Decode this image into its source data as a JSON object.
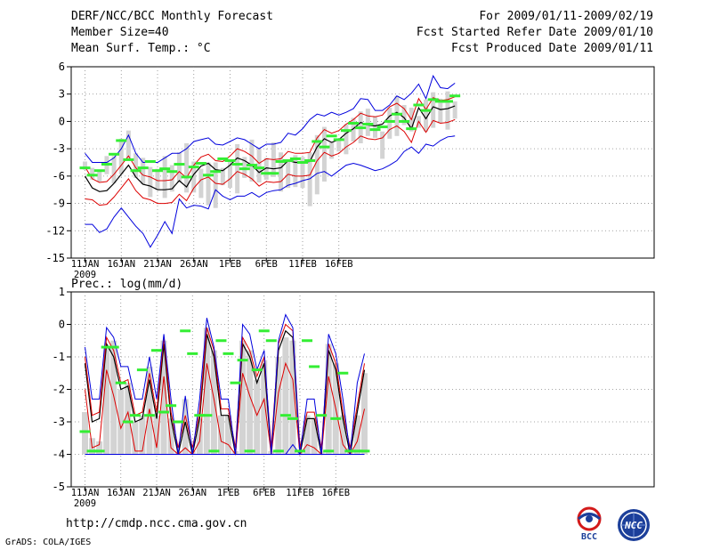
{
  "header": {
    "title": "DERF/NCC/BCC Monthly Forecast",
    "member": "Member Size=40",
    "variable": "Mean Surf. Temp.: °C",
    "period": "For 2009/01/11-2009/02/19",
    "started": "Fcst Started Refer Date 2009/01/10",
    "produced": "Fcst Produced Date 2009/01/11"
  },
  "footer": {
    "url": "http://cmdp.ncc.cma.gov.cn",
    "grads": "GrADS: COLA/IGES",
    "logo_bcc": "BCC",
    "logo_ncc": "NCC"
  },
  "colors": {
    "ensemble_mean": "#000000",
    "spread": "#dd0000",
    "extremes": "#0000dd",
    "member_box": "#d3d3d3",
    "climatology": "#33ee33",
    "grid": "#888888"
  },
  "chart_data": [
    {
      "type": "line",
      "title": "Mean Surf. Temp.: °C",
      "x_ticks": [
        "11JAN",
        "16JAN",
        "21JAN",
        "26JAN",
        "1FEB",
        "6FEB",
        "11FEB",
        "16FEB"
      ],
      "x_sub": "2009",
      "ylim": [
        -15,
        6
      ],
      "yticks": [
        "-15",
        "-12",
        "-9",
        "-6",
        "-3",
        "0",
        "3",
        "6"
      ],
      "series": [
        {
          "name": "ensemble mean",
          "values": [
            -6,
            -7.3,
            -7.7,
            -7.6,
            -6.8,
            -5.8,
            -4.8,
            -6.1,
            -6.9,
            -7.1,
            -7.5,
            -7.5,
            -7.4,
            -6.5,
            -7.2,
            -5.8,
            -4.9,
            -4.6,
            -5.3,
            -5.4,
            -4.8,
            -4,
            -4.3,
            -4.8,
            -5.6,
            -5.1,
            -5.2,
            -5.1,
            -4.3,
            -4.5,
            -4.5,
            -4.4,
            -2.8,
            -1.9,
            -2.3,
            -2,
            -1.3,
            -0.8,
            -0.1,
            -0.4,
            -0.5,
            -0.3,
            0.6,
            1,
            0.4,
            -0.8,
            1.5,
            0.3,
            1.6,
            1.3,
            1.4,
            1.7
          ]
        },
        {
          "name": "mean + std",
          "values": [
            -5,
            -6.3,
            -6.7,
            -6.6,
            -5.8,
            -4.8,
            -3.8,
            -5.1,
            -5.9,
            -6.1,
            -6.5,
            -6.5,
            -6.4,
            -5.5,
            -6.2,
            -4.8,
            -3.9,
            -3.6,
            -4.3,
            -4.4,
            -3.8,
            -3,
            -3.3,
            -3.8,
            -4.6,
            -4.1,
            -4.2,
            -4.1,
            -3.3,
            -3.5,
            -3.5,
            -3.4,
            -1.8,
            -0.9,
            -1.3,
            -1,
            -0.3,
            0.2,
            0.9,
            0.6,
            0.5,
            0.7,
            1.6,
            2,
            1.4,
            0.2,
            2.5,
            1.3,
            2.6,
            2.3,
            2.4,
            2.7
          ]
        },
        {
          "name": "mean - std",
          "values": [
            -8.5,
            -8.6,
            -9.2,
            -9.1,
            -8.3,
            -7.3,
            -6.3,
            -7.6,
            -8.4,
            -8.6,
            -9,
            -9,
            -8.9,
            -8,
            -8.7,
            -7.3,
            -6.4,
            -6.1,
            -6.8,
            -6.9,
            -6.3,
            -5.5,
            -5.8,
            -6.3,
            -7.1,
            -6.6,
            -6.7,
            -6.6,
            -5.8,
            -6,
            -6,
            -5.9,
            -4.3,
            -3.4,
            -3.8,
            -3.5,
            -2.8,
            -2.3,
            -1.6,
            -1.9,
            -2,
            -1.8,
            -0.9,
            -0.5,
            -1.1,
            -2.3,
            0,
            -1.2,
            0.1,
            -0.2,
            -0.1,
            0.2
          ]
        },
        {
          "name": "maximum",
          "values": [
            -3.5,
            -4.5,
            -4.5,
            -4.5,
            -4,
            -3,
            -1.5,
            -3.5,
            -4.5,
            -4.5,
            -4.5,
            -4,
            -3.5,
            -3.5,
            -3,
            -2.2,
            -2,
            -1.8,
            -2.5,
            -2.6,
            -2.2,
            -1.8,
            -2,
            -2.5,
            -3,
            -2.5,
            -2.5,
            -2.3,
            -1.3,
            -1.5,
            -0.8,
            0.2,
            0.8,
            0.6,
            1,
            0.7,
            1,
            1.4,
            2.5,
            2.4,
            1.2,
            1.2,
            1.8,
            2.8,
            2.4,
            3.1,
            4.1,
            2.5,
            5,
            3.7,
            3.6,
            4.2
          ]
        },
        {
          "name": "minimum",
          "values": [
            -11.3,
            -11.3,
            -12.2,
            -11.8,
            -10.5,
            -9.5,
            -10.5,
            -11.5,
            -12.3,
            -13.8,
            -12.5,
            -11,
            -12.3,
            -8.5,
            -9.5,
            -9.2,
            -9.3,
            -9.6,
            -7.5,
            -8.2,
            -8.6,
            -8.2,
            -8.2,
            -7.8,
            -8.3,
            -7.8,
            -7.6,
            -7.5,
            -7,
            -6.8,
            -6.5,
            -6.3,
            -5.7,
            -5.5,
            -6,
            -5.4,
            -4.8,
            -4.6,
            -4.8,
            -5.1,
            -5.4,
            -5.2,
            -4.8,
            -4.3,
            -3.3,
            -2.8,
            -3.5,
            -2.5,
            -2.7,
            -2.1,
            -1.7,
            -1.6
          ]
        }
      ],
      "member_ranges": [
        [
          -5.3,
          -4.4
        ],
        [
          -6.4,
          -5.1
        ],
        [
          -6.6,
          -5.5
        ],
        [
          -5.8,
          -3.8
        ],
        [
          -6.8,
          -3.8
        ],
        [
          -5.8,
          -1.9
        ],
        [
          -4,
          -1
        ],
        [
          -6.2,
          -3.5
        ],
        [
          -6.9,
          -4
        ],
        [
          -8.3,
          -5
        ],
        [
          -7.5,
          -5.2
        ],
        [
          -8.4,
          -3.8
        ],
        [
          -7.7,
          -4.8
        ],
        [
          -6.7,
          -3.4
        ],
        [
          -7.8,
          -2.4
        ],
        [
          -7.8,
          -4.4
        ],
        [
          -8.4,
          -5.2
        ],
        [
          -9.2,
          -4.5
        ],
        [
          -9.5,
          -4.5
        ],
        [
          -7,
          -5.1
        ],
        [
          -7.3,
          -4.2
        ],
        [
          -7.9,
          -2.5
        ],
        [
          -6.2,
          -3.9
        ],
        [
          -6.6,
          -2
        ],
        [
          -6.7,
          -3
        ],
        [
          -6.4,
          -4
        ],
        [
          -6.1,
          -2.3
        ],
        [
          -7.7,
          -3.4
        ],
        [
          -7.3,
          -4.3
        ],
        [
          -7.2,
          -3.7
        ],
        [
          -7.3,
          -3.9
        ],
        [
          -9.3,
          -3.4
        ],
        [
          -8,
          -1.5
        ],
        [
          -6.6,
          -0.6
        ],
        [
          -4.1,
          -2.3
        ],
        [
          -3.3,
          -2
        ],
        [
          -3.6,
          -0.3
        ],
        [
          -2.2,
          0.4
        ],
        [
          -2.4,
          1.1
        ],
        [
          -1.6,
          1.4
        ],
        [
          -1.8,
          0.6
        ],
        [
          -4.1,
          -1.1
        ],
        [
          -1.9,
          1.5
        ],
        [
          -1.6,
          2.8
        ],
        [
          -0.4,
          1.8
        ],
        [
          -1.1,
          1.5
        ],
        [
          -0.7,
          0.6
        ],
        [
          -1.1,
          2.4
        ],
        [
          -0.7,
          3.2
        ],
        [
          -0.2,
          2.5
        ],
        [
          -0.9,
          3.3
        ],
        [
          0.3,
          2.2
        ]
      ],
      "climatology": [
        -5.1,
        -5.9,
        -5.4,
        -4.7,
        -3.6,
        -2.1,
        -4.2,
        -5.4,
        -5.1,
        -4.4,
        -5.4,
        -5.2,
        -5.5,
        -4.7,
        -6.1,
        -5,
        -4.6,
        -5.9,
        -5.5,
        -4.1,
        -4.3,
        -4.7,
        -5.2,
        -4.8,
        -5.1,
        -5.7,
        -5.7,
        -4.4,
        -4.3,
        -4.1,
        -4.5,
        -4.3,
        -2.2,
        -2.8,
        -1.6,
        -2,
        -1,
        -0.2,
        -0.7,
        -0.3,
        -0.9,
        -0.6,
        0,
        0.8,
        0,
        -0.8,
        1.8,
        1.2,
        2.4,
        2.2,
        2.2,
        2.8
      ]
    },
    {
      "type": "line",
      "title": "Prec.: log(mm/d)",
      "x_ticks": [
        "11JAN",
        "16JAN",
        "21JAN",
        "26JAN",
        "1FEB",
        "6FEB",
        "11FEB",
        "16FEB"
      ],
      "x_sub": "2009",
      "ylim": [
        -5,
        1
      ],
      "yticks": [
        "-5",
        "-4",
        "-3",
        "-2",
        "-1",
        "0",
        "1"
      ],
      "series": [
        {
          "name": "ensemble mean",
          "values": [
            -1.2,
            -3,
            -2.9,
            -0.6,
            -1,
            -2,
            -1.9,
            -3,
            -2.9,
            -1.7,
            -2.9,
            -0.6,
            -2.9,
            -4,
            -3,
            -4,
            -2.9,
            -0.3,
            -1,
            -2.8,
            -2.8,
            -4,
            -0.6,
            -1,
            -1.8,
            -1.2,
            -4,
            -0.8,
            -0.2,
            -0.4,
            -4,
            -2.9,
            -2.9,
            -4,
            -0.8,
            -1.4,
            -2.9,
            -4,
            -2.7,
            -1.4
          ]
        },
        {
          "name": "mean + std",
          "values": [
            -1,
            -2.8,
            -2.7,
            -0.4,
            -0.8,
            -1.8,
            -1.7,
            -2.8,
            -2.7,
            -1.5,
            -2.7,
            -0.4,
            -2.7,
            -3.8,
            -2.8,
            -3.8,
            -2.7,
            -0.1,
            -0.8,
            -2.6,
            -2.6,
            -3.8,
            -0.4,
            -0.8,
            -1.6,
            -1,
            -3.8,
            -0.6,
            0,
            -0.2,
            -3.8,
            -2.7,
            -2.7,
            -3.8,
            -0.6,
            -1.2,
            -2.7,
            -3.8,
            -2.5,
            -1.2
          ]
        },
        {
          "name": "mean - std",
          "values": [
            -2,
            -3.8,
            -3.7,
            -1.4,
            -2.2,
            -3.2,
            -2.7,
            -3.9,
            -3.9,
            -2.6,
            -3.8,
            -1.6,
            -3.8,
            -4,
            -3.8,
            -4,
            -3.6,
            -1.2,
            -2.3,
            -3.6,
            -3.7,
            -4,
            -1.5,
            -2.2,
            -2.8,
            -2.3,
            -4,
            -2.1,
            -1.2,
            -1.7,
            -4,
            -3.7,
            -3.8,
            -4,
            -1.6,
            -2.6,
            -3.7,
            -4,
            -3.6,
            -2.6
          ]
        },
        {
          "name": "maximum",
          "values": [
            -0.7,
            -2.3,
            -2.3,
            -0.1,
            -0.4,
            -1.3,
            -1.3,
            -2.3,
            -2.3,
            -1,
            -2.3,
            -0.3,
            -2.3,
            -4,
            -2.2,
            -4,
            -2.3,
            0.2,
            -0.7,
            -2.3,
            -2.3,
            -4,
            0,
            -0.3,
            -1.4,
            -0.8,
            -4,
            -0.5,
            0.3,
            -0.1,
            -4,
            -2.3,
            -2.3,
            -4,
            -0.3,
            -0.9,
            -2.3,
            -4,
            -1.8,
            -0.9
          ]
        },
        {
          "name": "minimum",
          "values": [
            -4,
            -4,
            -4,
            -4,
            -4,
            -4,
            -4,
            -4,
            -4,
            -4,
            -4,
            -4,
            -4,
            -4,
            -4,
            -4,
            -4,
            -4,
            -4,
            -4,
            -4,
            -4,
            -4,
            -4,
            -4,
            -4,
            -4,
            -4,
            -4,
            -3.7,
            -4,
            -4,
            -4,
            -4,
            -4,
            -4,
            -4,
            -4,
            -4,
            -4
          ]
        },
        {
          "name": "zero line",
          "values": [
            -4,
            -4,
            -4,
            -4,
            -4,
            -4,
            -4,
            -4,
            -4,
            -4,
            -4,
            -4,
            -4,
            -4,
            -4,
            -4,
            -4,
            -4,
            -4,
            -4,
            -4,
            -4,
            -4,
            -4,
            -4,
            -4,
            -4,
            -4,
            -4,
            -4,
            -4,
            -4,
            -4,
            -4,
            -4,
            -4,
            -4,
            -4,
            -4,
            -4
          ]
        }
      ],
      "member_ranges": [
        [
          -4,
          -2.7
        ],
        [
          -4,
          -3.5
        ],
        [
          -4,
          -3.6
        ],
        [
          -4,
          -0.7
        ],
        [
          -4,
          -0.5
        ],
        [
          -4,
          -2
        ],
        [
          -4,
          -1.8
        ],
        [
          -4,
          -3
        ],
        [
          -4,
          -2.8
        ],
        [
          -4,
          -1.3
        ],
        [
          -4,
          -2.8
        ],
        [
          -4,
          -0.5
        ],
        [
          -4,
          -2.9
        ],
        [
          -4,
          -3.9
        ],
        [
          -4,
          -2.3
        ],
        [
          -4,
          -3.9
        ],
        [
          -4,
          -2.9
        ],
        [
          -4,
          -0.1
        ],
        [
          -4,
          -0.8
        ],
        [
          -4,
          -2.8
        ],
        [
          -4,
          -2.8
        ],
        [
          -4,
          -3.9
        ],
        [
          -4,
          -0.5
        ],
        [
          -4,
          -0.8
        ],
        [
          -4,
          -1.7
        ],
        [
          -4,
          -1.1
        ],
        [
          -4,
          -3.9
        ],
        [
          -4,
          -1
        ],
        [
          -4,
          -0.4
        ],
        [
          -4,
          -0.5
        ],
        [
          -4,
          -3.9
        ],
        [
          -4,
          -2.8
        ],
        [
          -4,
          -2.9
        ],
        [
          -4,
          -3.9
        ],
        [
          -4,
          -0.6
        ],
        [
          -4,
          -1.2
        ],
        [
          -4,
          -2.8
        ],
        [
          -4,
          -3.8
        ],
        [
          -4,
          -2.8
        ],
        [
          -4,
          -1.5
        ]
      ],
      "climatology": [
        -3.3,
        -3.9,
        -3.9,
        -0.7,
        -0.7,
        -1.8,
        -3,
        -2.8,
        -1.4,
        -2.8,
        -0.8,
        -2.7,
        -2.5,
        -3,
        -0.2,
        -0.9,
        -2.8,
        -2.8,
        -3.9,
        -0.5,
        -0.9,
        -1.8,
        -1.1,
        -3.9,
        -1.4,
        -0.2,
        -0.5,
        -3.9,
        -2.8,
        -2.9,
        -3.9,
        -0.5,
        -1.3,
        -2.8,
        -3.9,
        -2.9,
        -1.5,
        -3.9,
        -3.9,
        -3.9
      ]
    }
  ]
}
